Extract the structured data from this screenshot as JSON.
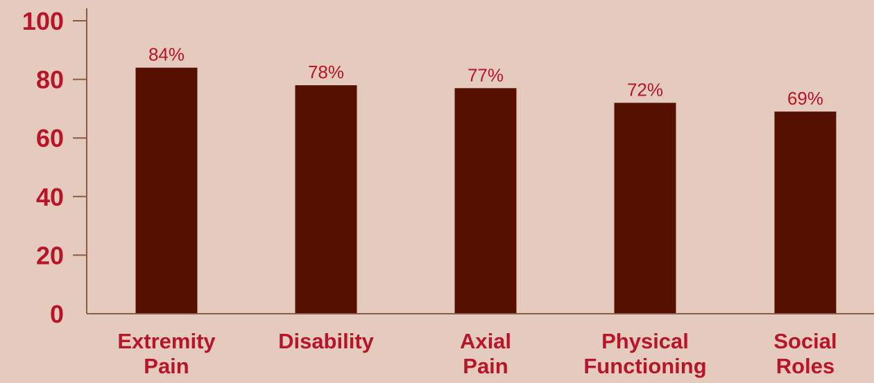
{
  "colors": {
    "background": "#e5cbbd",
    "bar": "#561000",
    "axis": "#8a5a44",
    "tick_text": "#b8142a"
  },
  "chart_data": {
    "type": "bar",
    "categories": [
      [
        "Extremity",
        "Pain"
      ],
      [
        "Disability"
      ],
      [
        "Axial",
        "Pain"
      ],
      [
        "Physical",
        "Functioning"
      ],
      [
        "Social",
        "Roles"
      ]
    ],
    "values": [
      84,
      78,
      77,
      72,
      69
    ],
    "data_labels": [
      "84%",
      "78%",
      "77%",
      "72%",
      "69%"
    ],
    "yticks": [
      0,
      20,
      40,
      60,
      80,
      100
    ],
    "ylim": [
      0,
      100
    ],
    "grid": false,
    "legend": "none"
  }
}
